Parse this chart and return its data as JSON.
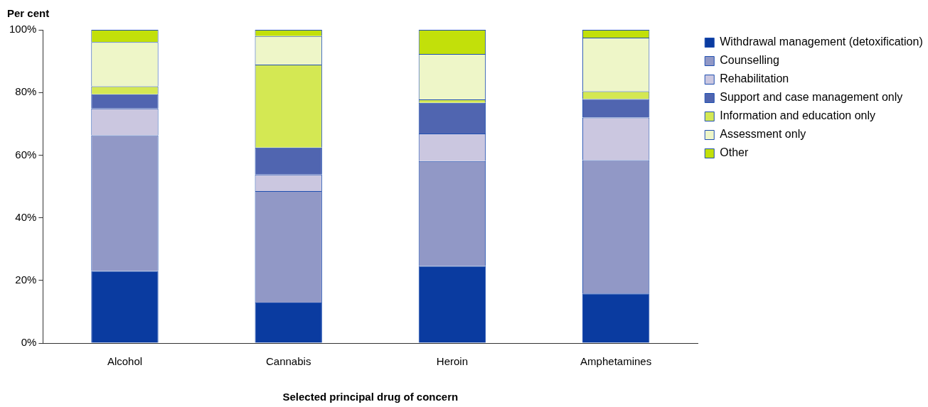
{
  "chart_data": {
    "type": "bar",
    "stacked": true,
    "ylabel": "Per cent",
    "xlabel": "Selected principal drug of concern",
    "categories": [
      "Alcohol",
      "Cannabis",
      "Heroin",
      "Amphetamines"
    ],
    "series": [
      {
        "name": "Withdrawal management (detoxification)",
        "color": "#0a3ba0",
        "values": [
          23.0,
          12.9,
          24.6,
          15.8
        ]
      },
      {
        "name": "Counselling",
        "color": "#9198c6",
        "values": [
          43.3,
          35.6,
          33.5,
          42.6
        ]
      },
      {
        "name": "Rehabilitation",
        "color": "#cbc7e0",
        "values": [
          8.6,
          5.3,
          8.8,
          13.6
        ]
      },
      {
        "name": "Support and case management only",
        "color": "#5065b0",
        "values": [
          4.5,
          8.6,
          9.8,
          5.9
        ]
      },
      {
        "name": "Information and education only",
        "color": "#d4e853",
        "values": [
          2.6,
          26.5,
          1.1,
          2.5
        ]
      },
      {
        "name": "Assessment only",
        "color": "#eef6c8",
        "values": [
          14.1,
          9.1,
          14.5,
          17.1
        ]
      },
      {
        "name": "Other",
        "color": "#c2e00a",
        "values": [
          3.9,
          2.0,
          7.7,
          2.5
        ]
      }
    ],
    "ylim": [
      0,
      100
    ],
    "yticks": [
      {
        "value": 0,
        "label": "0%"
      },
      {
        "value": 20,
        "label": "20%"
      },
      {
        "value": 40,
        "label": "40%"
      },
      {
        "value": 60,
        "label": "60%"
      },
      {
        "value": 80,
        "label": "80%"
      },
      {
        "value": 100,
        "label": "100%"
      }
    ],
    "grid": false,
    "legend": "right"
  }
}
